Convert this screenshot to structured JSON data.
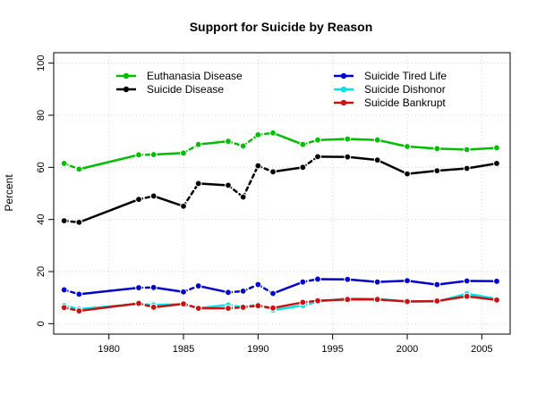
{
  "chart_data": {
    "type": "line",
    "title": "Support for Suicide by Reason",
    "xlabel": "",
    "ylabel": "Percent",
    "xlim": [
      1976.3,
      2006.9
    ],
    "ylim": [
      -4,
      104
    ],
    "xticks": [
      1980,
      1985,
      1990,
      1995,
      2000,
      2005
    ],
    "yticks": [
      0,
      20,
      40,
      60,
      80,
      100
    ],
    "grid": true,
    "legend_left": [
      "Euthanasia Disease",
      "Suicide Disease"
    ],
    "legend_right": [
      "Suicide Tired Life",
      "Suicide Dishonor",
      "Suicide Bankrupt"
    ],
    "series": [
      {
        "name": "Euthanasia Disease",
        "color": "#00c000",
        "x": [
          1977,
          1978,
          1982,
          1983,
          1985,
          1986,
          1988,
          1989,
          1990,
          1991,
          1993,
          1994,
          1996,
          1998,
          2000,
          2002,
          2004,
          2006
        ],
        "y": [
          61.5,
          59.3,
          64.8,
          64.9,
          65.5,
          68.8,
          70.0,
          68.2,
          72.5,
          73.2,
          68.8,
          70.5,
          70.9,
          70.5,
          68.0,
          67.2,
          66.8,
          67.5
        ]
      },
      {
        "name": "Suicide Disease",
        "color": "#000000",
        "x": [
          1977,
          1978,
          1982,
          1983,
          1985,
          1986,
          1988,
          1989,
          1990,
          1991,
          1993,
          1994,
          1996,
          1998,
          2000,
          2002,
          2004,
          2006
        ],
        "y": [
          39.5,
          38.9,
          47.7,
          49.0,
          45.1,
          53.8,
          53.1,
          48.6,
          60.6,
          58.3,
          60.0,
          64.1,
          64.0,
          62.8,
          57.5,
          58.7,
          59.6,
          61.5
        ]
      },
      {
        "name": "Suicide Tired Life",
        "color": "#0000cc",
        "x": [
          1977,
          1978,
          1982,
          1983,
          1985,
          1986,
          1988,
          1989,
          1990,
          1991,
          1993,
          1994,
          1996,
          1998,
          2000,
          2002,
          2004,
          2006
        ],
        "y": [
          13.0,
          11.3,
          13.8,
          13.9,
          12.2,
          14.5,
          12.0,
          12.5,
          15.0,
          11.6,
          16.0,
          17.1,
          17.0,
          16.0,
          16.5,
          15.0,
          16.4,
          16.3
        ]
      },
      {
        "name": "Suicide Dishonor",
        "color": "#00e5e5",
        "x": [
          1977,
          1978,
          1982,
          1983,
          1985,
          1986,
          1988,
          1989,
          1990,
          1991,
          1993,
          1994,
          1996,
          1998,
          2000,
          2002,
          2004,
          2006
        ],
        "y": [
          7.0,
          5.6,
          7.6,
          7.2,
          7.5,
          6.0,
          7.2,
          6.3,
          7.4,
          5.2,
          7.0,
          8.5,
          9.7,
          9.5,
          8.5,
          8.5,
          11.5,
          9.5
        ]
      },
      {
        "name": "Suicide Bankrupt",
        "color": "#cc1111",
        "x": [
          1977,
          1978,
          1982,
          1983,
          1985,
          1986,
          1988,
          1989,
          1990,
          1991,
          1993,
          1994,
          1996,
          1998,
          2000,
          2002,
          2004,
          2006
        ],
        "y": [
          6.2,
          4.9,
          7.8,
          6.3,
          7.6,
          5.9,
          5.9,
          6.3,
          6.9,
          6.0,
          8.2,
          8.8,
          9.3,
          9.3,
          8.5,
          8.7,
          10.5,
          9.1
        ]
      }
    ]
  }
}
